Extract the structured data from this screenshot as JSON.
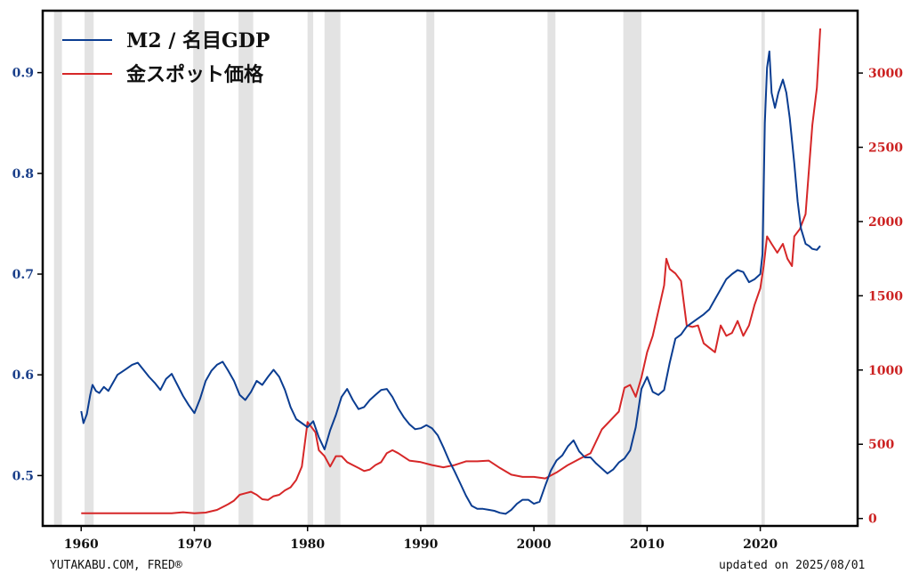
{
  "footer": {
    "source": "YUTAKABU.COM, FRED®",
    "updated": "updated on 2025/08/01"
  },
  "colors": {
    "left_series": "#0b3d91",
    "right_series": "#d62728",
    "recession_band": "#e3e3e3"
  },
  "chart_data": {
    "type": "line",
    "title": "",
    "xlabel": "",
    "ylabel": "",
    "xlim": [
      1956.6,
      2028.6
    ],
    "ylim_left": [
      0.45,
      0.9615
    ],
    "ylim_right": [
      -50,
      3420
    ],
    "x_ticks": [
      1960,
      1970,
      1980,
      1990,
      2000,
      2010,
      2020
    ],
    "y_ticks_left": [
      0.5,
      0.6,
      0.7,
      0.8,
      0.9
    ],
    "y_ticks_right": [
      0,
      500,
      1000,
      1500,
      2000,
      2500,
      3000
    ],
    "legend_position": "top-left",
    "recessions": [
      [
        1957.6,
        1958.3
      ],
      [
        1960.3,
        1961.1
      ],
      [
        1969.9,
        1970.9
      ],
      [
        1973.9,
        1975.2
      ],
      [
        1980.0,
        1980.5
      ],
      [
        1981.5,
        1982.9
      ],
      [
        1990.5,
        1991.2
      ],
      [
        2001.2,
        2001.9
      ],
      [
        2007.9,
        2009.5
      ],
      [
        2020.1,
        2020.4
      ]
    ],
    "series": [
      {
        "name": "M2 / 名目GDP",
        "axis": "left",
        "x": [
          1960.0,
          1960.2,
          1960.5,
          1960.8,
          1961.0,
          1961.3,
          1961.6,
          1962.0,
          1962.4,
          1962.8,
          1963.2,
          1963.6,
          1964.0,
          1964.5,
          1965.0,
          1965.5,
          1966.0,
          1966.5,
          1967.0,
          1967.5,
          1968.0,
          1968.5,
          1969.0,
          1969.5,
          1970.0,
          1970.5,
          1971.0,
          1971.5,
          1972.0,
          1972.5,
          1973.0,
          1973.5,
          1974.0,
          1974.5,
          1975.0,
          1975.5,
          1976.0,
          1976.5,
          1977.0,
          1977.5,
          1978.0,
          1978.5,
          1979.0,
          1979.5,
          1980.0,
          1980.5,
          1981.0,
          1981.5,
          1982.0,
          1982.5,
          1983.0,
          1983.5,
          1984.0,
          1984.5,
          1985.0,
          1985.5,
          1986.0,
          1986.5,
          1987.0,
          1987.5,
          1988.0,
          1988.5,
          1989.0,
          1989.5,
          1990.0,
          1990.5,
          1991.0,
          1991.5,
          1992.0,
          1992.5,
          1993.0,
          1993.5,
          1994.0,
          1994.5,
          1995.0,
          1995.5,
          1996.0,
          1996.5,
          1997.0,
          1997.5,
          1998.0,
          1998.5,
          1999.0,
          1999.5,
          2000.0,
          2000.5,
          2001.0,
          2001.5,
          2002.0,
          2002.5,
          2003.0,
          2003.5,
          2004.0,
          2004.5,
          2005.0,
          2005.5,
          2006.0,
          2006.5,
          2007.0,
          2007.5,
          2008.0,
          2008.5,
          2009.0,
          2009.5,
          2010.0,
          2010.5,
          2011.0,
          2011.5,
          2012.0,
          2012.5,
          2013.0,
          2013.5,
          2014.0,
          2014.5,
          2015.0,
          2015.5,
          2016.0,
          2016.5,
          2017.0,
          2017.5,
          2018.0,
          2018.5,
          2019.0,
          2019.5,
          2020.0,
          2020.2,
          2020.4,
          2020.6,
          2020.8,
          2021.0,
          2021.3,
          2021.6,
          2022.0,
          2022.3,
          2022.6,
          2023.0,
          2023.3,
          2023.6,
          2024.0,
          2024.3,
          2024.6,
          2025.0,
          2025.3
        ],
        "values": [
          0.564,
          0.552,
          0.561,
          0.58,
          0.59,
          0.584,
          0.582,
          0.588,
          0.584,
          0.592,
          0.6,
          0.603,
          0.606,
          0.61,
          0.612,
          0.605,
          0.598,
          0.592,
          0.585,
          0.596,
          0.601,
          0.59,
          0.579,
          0.57,
          0.562,
          0.576,
          0.594,
          0.604,
          0.61,
          0.613,
          0.604,
          0.594,
          0.58,
          0.575,
          0.583,
          0.594,
          0.59,
          0.598,
          0.605,
          0.598,
          0.585,
          0.568,
          0.556,
          0.552,
          0.548,
          0.554,
          0.538,
          0.526,
          0.545,
          0.56,
          0.578,
          0.586,
          0.575,
          0.566,
          0.568,
          0.575,
          0.58,
          0.585,
          0.586,
          0.578,
          0.567,
          0.558,
          0.551,
          0.546,
          0.547,
          0.55,
          0.547,
          0.54,
          0.528,
          0.515,
          0.504,
          0.492,
          0.48,
          0.47,
          0.467,
          0.467,
          0.466,
          0.465,
          0.463,
          0.462,
          0.466,
          0.472,
          0.476,
          0.476,
          0.472,
          0.474,
          0.49,
          0.505,
          0.515,
          0.52,
          0.529,
          0.535,
          0.524,
          0.518,
          0.518,
          0.512,
          0.507,
          0.502,
          0.506,
          0.513,
          0.517,
          0.525,
          0.548,
          0.586,
          0.598,
          0.583,
          0.58,
          0.585,
          0.612,
          0.636,
          0.64,
          0.648,
          0.652,
          0.656,
          0.66,
          0.665,
          0.675,
          0.685,
          0.695,
          0.7,
          0.704,
          0.702,
          0.692,
          0.695,
          0.7,
          0.72,
          0.85,
          0.905,
          0.921,
          0.88,
          0.865,
          0.88,
          0.893,
          0.88,
          0.855,
          0.81,
          0.772,
          0.745,
          0.73,
          0.728,
          0.725,
          0.724,
          0.728
        ]
      },
      {
        "name": "金スポット価格",
        "axis": "right",
        "x": [
          1960.0,
          1962.0,
          1964.0,
          1966.0,
          1968.0,
          1969.0,
          1970.0,
          1971.0,
          1972.0,
          1973.0,
          1973.5,
          1974.0,
          1974.5,
          1975.0,
          1975.5,
          1976.0,
          1976.5,
          1977.0,
          1977.5,
          1978.0,
          1978.5,
          1979.0,
          1979.5,
          1980.0,
          1980.3,
          1980.7,
          1981.0,
          1981.5,
          1982.0,
          1982.5,
          1983.0,
          1983.5,
          1984.0,
          1984.5,
          1985.0,
          1985.5,
          1986.0,
          1986.5,
          1987.0,
          1987.5,
          1988.0,
          1989.0,
          1990.0,
          1991.0,
          1992.0,
          1993.0,
          1994.0,
          1995.0,
          1996.0,
          1997.0,
          1998.0,
          1999.0,
          2000.0,
          2001.0,
          2002.0,
          2003.0,
          2004.0,
          2005.0,
          2006.0,
          2007.0,
          2007.5,
          2008.0,
          2008.5,
          2009.0,
          2009.5,
          2010.0,
          2010.5,
          2011.0,
          2011.5,
          2011.7,
          2012.0,
          2012.5,
          2013.0,
          2013.5,
          2014.0,
          2014.5,
          2015.0,
          2015.5,
          2016.0,
          2016.5,
          2017.0,
          2017.5,
          2018.0,
          2018.5,
          2019.0,
          2019.5,
          2020.0,
          2020.3,
          2020.6,
          2021.0,
          2021.5,
          2022.0,
          2022.4,
          2022.8,
          2023.0,
          2023.5,
          2024.0,
          2024.3,
          2024.6,
          2025.0,
          2025.3
        ],
        "values": [
          35,
          35,
          35,
          35,
          35,
          42,
          36,
          40,
          58,
          97,
          120,
          160,
          170,
          180,
          160,
          130,
          125,
          150,
          160,
          190,
          210,
          260,
          350,
          650,
          620,
          580,
          460,
          420,
          350,
          420,
          420,
          380,
          360,
          340,
          320,
          330,
          360,
          380,
          440,
          460,
          440,
          390,
          380,
          360,
          345,
          360,
          385,
          385,
          390,
          340,
          295,
          280,
          280,
          270,
          310,
          360,
          400,
          440,
          600,
          680,
          720,
          880,
          900,
          820,
          950,
          1120,
          1230,
          1400,
          1570,
          1750,
          1680,
          1650,
          1600,
          1300,
          1290,
          1300,
          1180,
          1150,
          1120,
          1300,
          1230,
          1250,
          1330,
          1230,
          1300,
          1440,
          1550,
          1700,
          1900,
          1850,
          1790,
          1850,
          1750,
          1700,
          1900,
          1950,
          2050,
          2350,
          2650,
          2900,
          3300
        ]
      }
    ]
  }
}
